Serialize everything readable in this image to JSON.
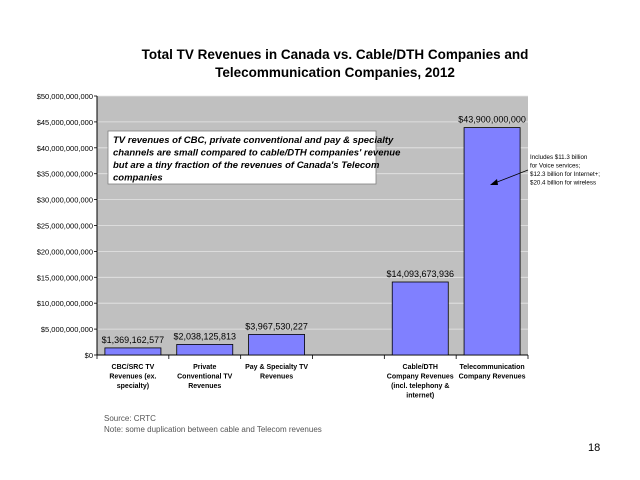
{
  "slide": {
    "title_line1": "Total TV Revenues in Canada vs. Cable/DTH Companies and",
    "title_line2": "Telecommunication Companies, 2012",
    "source": "Source: CRTC",
    "note": "Note: some duplication between cable and Telecom revenues",
    "page_number": "18"
  },
  "chart_data": {
    "type": "bar",
    "title": "Total TV Revenues in Canada vs. Cable/DTH Companies and Telecommunication Companies, 2012",
    "categories": [
      [
        "CBC/SRC TV",
        "Revenues (ex.",
        "specialty)"
      ],
      [
        "Private",
        "Conventional TV",
        "Revenues"
      ],
      [
        "Pay & Specialty TV",
        "Revenues"
      ],
      [
        "Cable/DTH",
        "Company Revenues",
        "(incl. telephony &",
        "internet)"
      ],
      [
        "Telecommunication",
        "Company Revenues"
      ]
    ],
    "slots": [
      0,
      1,
      2,
      4,
      5
    ],
    "slot_count": 6,
    "values": [
      1369162577,
      2038125813,
      3967530227,
      14093673936,
      43900000000
    ],
    "value_labels": [
      "$1,369,162,577",
      "$2,038,125,813",
      "$3,967,530,227",
      "$14,093,673,936",
      "$43,900,000,000"
    ],
    "ylim": [
      0,
      50000000000
    ],
    "y_ticks": [
      0,
      5000000000,
      10000000000,
      15000000000,
      20000000000,
      25000000000,
      30000000000,
      35000000000,
      40000000000,
      45000000000,
      50000000000
    ],
    "y_tick_labels": [
      "$0",
      "$5,000,000,000",
      "$10,000,000,000",
      "$15,000,000,000",
      "$20,000,000,000",
      "$25,000,000,000",
      "$30,000,000,000",
      "$35,000,000,000",
      "$40,000,000,000",
      "$45,000,000,000",
      "$50,000,000,000"
    ],
    "grid": true,
    "xlabel": "",
    "ylabel": "",
    "annotation_box": [
      "TV revenues of CBC, private conventional and pay & specialty",
      "channels are small compared to cable/DTH companies' revenue",
      "but are a tiny fraction of the revenues of Canada's Telecom",
      "companies"
    ],
    "side_note": [
      "Includes $11.3 billion",
      "for Voice services;",
      "$12.3 billion for Internet+;",
      "$20.4 billion for wireless"
    ],
    "colors": {
      "bar": "#8080ff",
      "plot_bg": "#c0c0c0",
      "grid": "#e6e6e6",
      "axis": "#000000"
    }
  }
}
